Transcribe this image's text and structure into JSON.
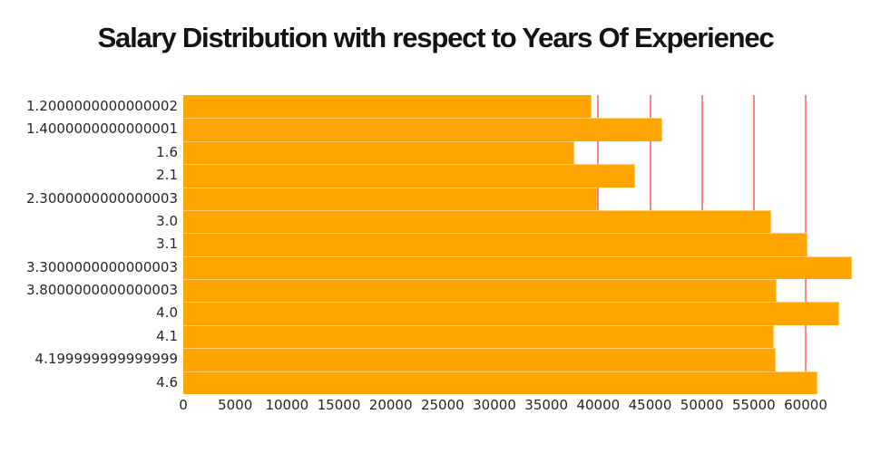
{
  "chart_data": {
    "type": "bar",
    "orientation": "horizontal",
    "title": "Salary Distribution with respect to Years Of Experienec",
    "categories": [
      "1.2000000000000002",
      "1.4000000000000001",
      "1.6",
      "2.1",
      "2.3000000000000003",
      "3.0",
      "3.1",
      "3.3000000000000003",
      "3.8000000000000003",
      "4.0",
      "4.1",
      "4.199999999999999",
      "4.6"
    ],
    "values": [
      39344,
      46206,
      37732,
      43526,
      39892,
      56643,
      60151,
      64446,
      57190,
      63219,
      56958,
      57082,
      61112
    ],
    "x_ticks": [
      0,
      5000,
      10000,
      15000,
      20000,
      25000,
      30000,
      35000,
      40000,
      45000,
      50000,
      55000,
      60000
    ],
    "xlim": [
      0,
      66122
    ],
    "xlabel": "",
    "ylabel": "",
    "legend": false,
    "grid": "vertical",
    "bar_color": "#FFA500",
    "bar_separator_color": "rgba(255,255,255,0.45)",
    "gridline_color": "#FF1F14",
    "tick_label_color": "#262626",
    "title_color": "#141414"
  }
}
